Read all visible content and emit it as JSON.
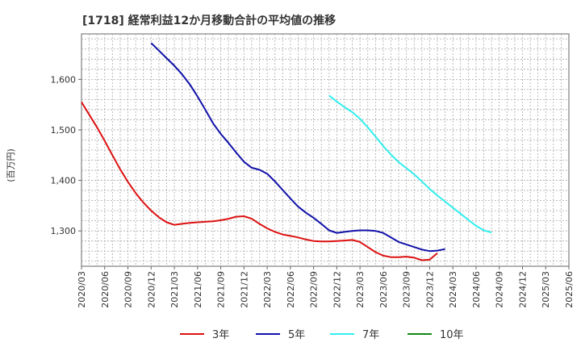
{
  "chart_data": {
    "type": "line",
    "title": "[1718]  経常利益12か月移動合計の平均値の推移",
    "xlabel": "",
    "ylabel": "(百万円)",
    "ylim": [
      1230,
      1690
    ],
    "yticks": [
      1300,
      1400,
      1500,
      1600
    ],
    "ytick_labels": [
      "1,300",
      "1,400",
      "1,500",
      "1,600"
    ],
    "grid": true,
    "legend_position": "bottom",
    "x_ticks": [
      "2020/03",
      "2020/06",
      "2020/09",
      "2020/12",
      "2021/03",
      "2021/06",
      "2021/09",
      "2021/12",
      "2022/03",
      "2022/06",
      "2022/09",
      "2022/12",
      "2023/03",
      "2023/06",
      "2023/09",
      "2023/12",
      "2024/03",
      "2024/06",
      "2024/09",
      "2024/12",
      "2025/03",
      "2025/06"
    ],
    "x_start": "2020/03",
    "x_end": "2025/06",
    "series": [
      {
        "name": "3年",
        "color": "#dd1111",
        "start": "2020/03",
        "values": [
          1555,
          1530,
          1505,
          1478,
          1450,
          1422,
          1397,
          1375,
          1356,
          1340,
          1327,
          1317,
          1312,
          1314,
          1316,
          1317,
          1318,
          1319,
          1321,
          1324,
          1328,
          1329,
          1324,
          1314,
          1305,
          1298,
          1293,
          1290,
          1287,
          1283,
          1280,
          1279,
          1279,
          1280,
          1281,
          1282,
          1278,
          1268,
          1258,
          1251,
          1248,
          1248,
          1249,
          1247,
          1242,
          1243,
          1256
        ]
      },
      {
        "name": "5年",
        "color": "#1111aa",
        "start": "2020/12",
        "values": [
          1672,
          1657,
          1642,
          1627,
          1610,
          1590,
          1566,
          1540,
          1513,
          1492,
          1474,
          1455,
          1437,
          1425,
          1421,
          1413,
          1398,
          1381,
          1364,
          1348,
          1336,
          1326,
          1314,
          1301,
          1296,
          1298,
          1300,
          1301,
          1301,
          1300,
          1296,
          1287,
          1278,
          1273,
          1268,
          1263,
          1260,
          1261,
          1264
        ]
      },
      {
        "name": "7年",
        "color": "#33eeee",
        "start": "2022/11",
        "values": [
          1568,
          1556,
          1545,
          1535,
          1522,
          1505,
          1487,
          1468,
          1451,
          1436,
          1424,
          1412,
          1398,
          1383,
          1370,
          1358,
          1346,
          1334,
          1322,
          1310,
          1301,
          1297
        ]
      },
      {
        "name": "10年",
        "color": "#118811",
        "start": "2020/03",
        "values": []
      }
    ]
  }
}
